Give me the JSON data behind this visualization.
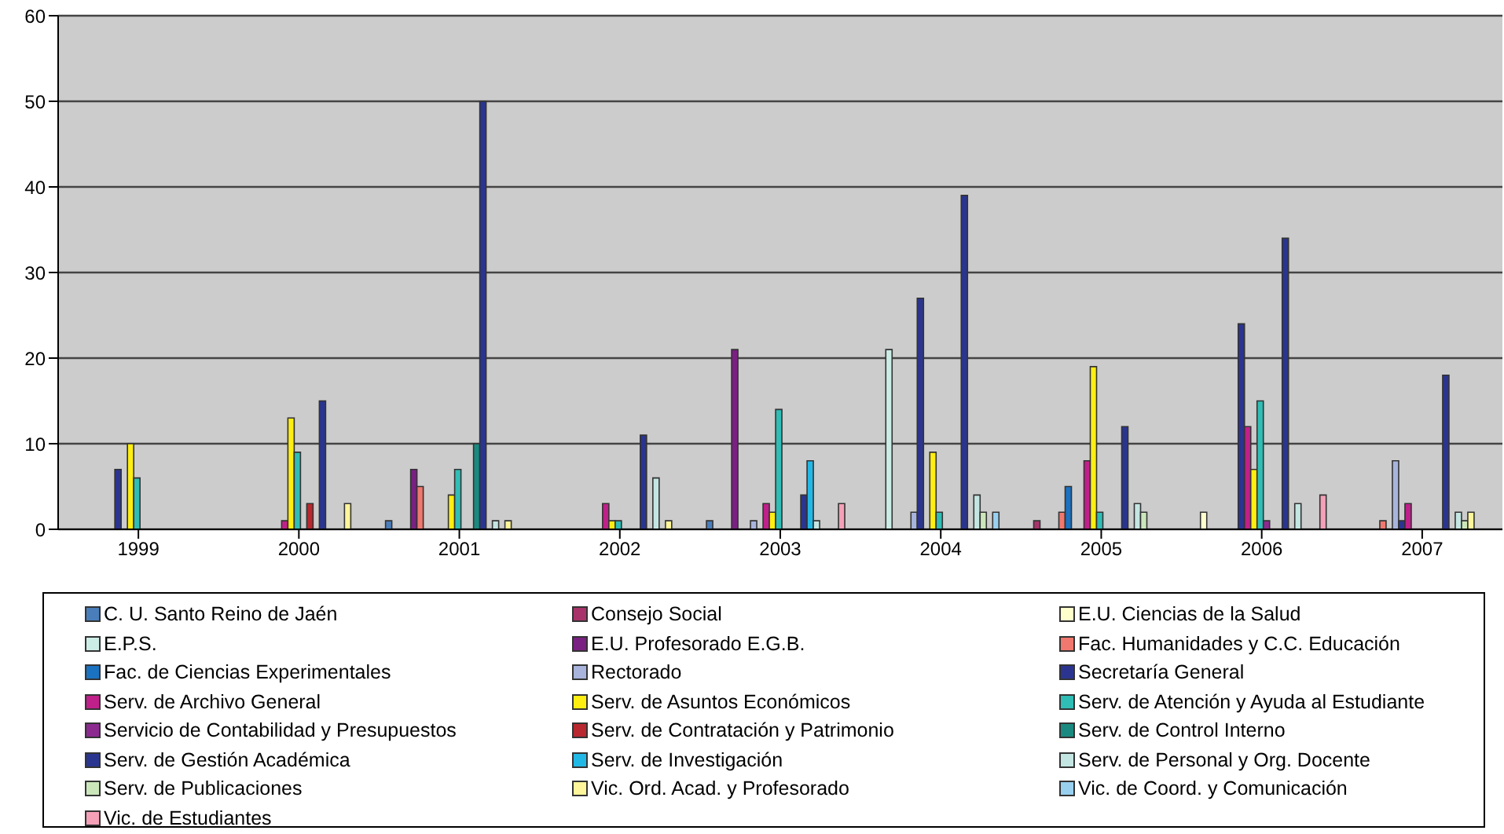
{
  "chart_data": {
    "type": "bar",
    "categories": [
      "1999",
      "2000",
      "2001",
      "2002",
      "2003",
      "2004",
      "2005",
      "2006",
      "2007"
    ],
    "ylim": [
      0,
      60
    ],
    "yticks": [
      0,
      10,
      20,
      30,
      40,
      50,
      60
    ],
    "grid": "y",
    "legend": "bottom",
    "series": [
      {
        "name": "C. U. Santo Reino de Jaén",
        "color": "#4a7ebb",
        "values": [
          null,
          null,
          1,
          null,
          1,
          null,
          null,
          null,
          null
        ]
      },
      {
        "name": "Consejo Social",
        "color": "#a8336a",
        "values": [
          null,
          null,
          null,
          null,
          null,
          null,
          1,
          null,
          null
        ]
      },
      {
        "name": "E.U. Ciencias de la Salud",
        "color": "#ffffcc",
        "values": [
          null,
          null,
          null,
          null,
          null,
          null,
          null,
          2,
          null
        ]
      },
      {
        "name": "E.P.S.",
        "color": "#ccece6",
        "values": [
          null,
          null,
          null,
          null,
          null,
          21,
          null,
          null,
          null
        ]
      },
      {
        "name": "E.U. Profesorado E.G.B.",
        "color": "#7a2082",
        "values": [
          null,
          null,
          7,
          null,
          21,
          null,
          null,
          null,
          null
        ]
      },
      {
        "name": "Fac. Humanidades y C.C. Educación",
        "color": "#f0786e",
        "values": [
          null,
          null,
          5,
          null,
          null,
          null,
          2,
          null,
          1
        ]
      },
      {
        "name": "Fac. de Ciencias Experimentales",
        "color": "#1a72c0",
        "values": [
          null,
          null,
          null,
          null,
          null,
          null,
          5,
          null,
          null
        ]
      },
      {
        "name": "Rectorado",
        "color": "#a8b4dc",
        "values": [
          null,
          null,
          null,
          null,
          1,
          2,
          null,
          null,
          8
        ]
      },
      {
        "name": "Secretaría General",
        "color": "#2b3590",
        "values": [
          7,
          null,
          null,
          null,
          null,
          27,
          null,
          24,
          1
        ]
      },
      {
        "name": "Serv. de Archivo General",
        "color": "#c0208a",
        "values": [
          null,
          1,
          null,
          3,
          3,
          null,
          8,
          12,
          3
        ]
      },
      {
        "name": "Serv. de Asuntos Económicos",
        "color": "#ffee11",
        "values": [
          10,
          13,
          4,
          1,
          2,
          9,
          19,
          7,
          null
        ]
      },
      {
        "name": "Serv. de Atención y Ayuda al Estudiante",
        "color": "#30bdb5",
        "values": [
          6,
          9,
          7,
          1,
          14,
          2,
          2,
          15,
          null
        ]
      },
      {
        "name": "Servicio de Contabilidad y Presupuestos",
        "color": "#8c2a90",
        "values": [
          null,
          null,
          null,
          null,
          null,
          null,
          null,
          1,
          null
        ]
      },
      {
        "name": "Serv. de Contratación y Patrimonio",
        "color": "#b8282e",
        "values": [
          null,
          3,
          null,
          null,
          null,
          null,
          null,
          null,
          null
        ]
      },
      {
        "name": "Serv. de Control Interno",
        "color": "#1a8a80",
        "values": [
          null,
          null,
          10,
          null,
          null,
          null,
          null,
          null,
          null
        ]
      },
      {
        "name": "Serv. de Gestión Académica",
        "color": "#2a3590",
        "values": [
          null,
          15,
          50,
          11,
          4,
          39,
          12,
          34,
          18
        ]
      },
      {
        "name": "Serv. de Investigación",
        "color": "#22b8e6",
        "values": [
          null,
          null,
          null,
          null,
          8,
          null,
          null,
          null,
          null
        ]
      },
      {
        "name": "Serv. de Personal y Org. Docente",
        "color": "#c4e6e2",
        "values": [
          null,
          null,
          1,
          6,
          1,
          4,
          3,
          3,
          2
        ]
      },
      {
        "name": "Serv. de Publicaciones",
        "color": "#cce6bb",
        "values": [
          null,
          null,
          null,
          null,
          null,
          2,
          2,
          null,
          1
        ]
      },
      {
        "name": "Vic. Ord. Acad. y Profesorado",
        "color": "#fff59a",
        "values": [
          null,
          3,
          1,
          1,
          null,
          null,
          null,
          null,
          2
        ]
      },
      {
        "name": "Vic. de Coord. y Comunicación",
        "color": "#99d0f0",
        "values": [
          null,
          null,
          null,
          null,
          null,
          2,
          null,
          null,
          null
        ]
      },
      {
        "name": "Vic. de Estudiantes",
        "color": "#f4a0b8",
        "values": [
          null,
          null,
          null,
          null,
          3,
          null,
          null,
          4,
          null
        ]
      }
    ]
  }
}
